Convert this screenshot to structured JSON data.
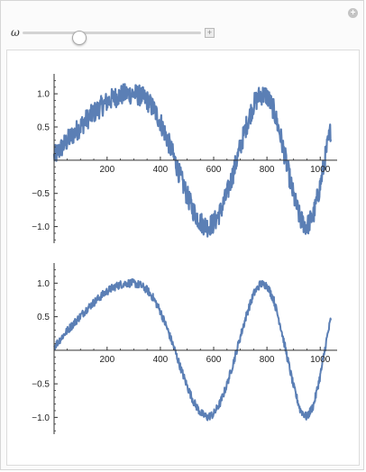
{
  "controls": {
    "parameter_label": "ω",
    "slider_value_fraction": 0.32
  },
  "colors": {
    "line": "#5b7fb5",
    "axis": "#333333"
  },
  "chart_data": [
    {
      "type": "line",
      "title": "",
      "xlabel": "",
      "ylabel": "",
      "xlim": [
        1,
        1050
      ],
      "ylim": [
        -1.25,
        1.3
      ],
      "x_ticks": [
        200,
        400,
        600,
        800,
        1000
      ],
      "y_ticks": [
        -1.0,
        -0.5,
        0.5,
        1.0
      ],
      "x_tick_labels": [
        "200",
        "400",
        "600",
        "800",
        "1000"
      ],
      "y_tick_labels": [
        "−1.0",
        "−0.5",
        "0.5",
        "1.0"
      ],
      "series": [
        {
          "x": [
            1,
            25,
            50,
            75,
            100,
            125,
            150,
            175,
            200,
            225,
            250,
            275,
            300,
            325,
            350,
            375,
            400,
            425,
            450,
            475,
            500,
            525,
            550,
            575,
            600,
            625,
            650,
            675,
            700,
            725,
            750,
            775,
            800,
            825,
            850,
            875,
            900,
            925,
            950,
            975,
            1000,
            1025,
            1040
          ],
          "y": [
            0.05,
            0.17,
            0.29,
            0.4,
            0.51,
            0.62,
            0.71,
            0.8,
            0.88,
            0.94,
            0.98,
            1.0,
            1.0,
            0.97,
            0.9,
            0.77,
            0.58,
            0.33,
            0.05,
            -0.25,
            -0.53,
            -0.77,
            -0.93,
            -1.0,
            -0.95,
            -0.78,
            -0.51,
            -0.17,
            0.2,
            0.55,
            0.84,
            0.99,
            0.97,
            0.76,
            0.38,
            -0.08,
            -0.54,
            -0.89,
            -1.0,
            -0.82,
            -0.38,
            0.18,
            0.47
          ],
          "noise_amplitude": 0.16
        }
      ]
    },
    {
      "type": "line",
      "title": "",
      "xlabel": "",
      "ylabel": "",
      "xlim": [
        1,
        1050
      ],
      "ylim": [
        -1.25,
        1.3
      ],
      "x_ticks": [
        200,
        400,
        600,
        800,
        1000
      ],
      "y_ticks": [
        -1.0,
        -0.5,
        0.5,
        1.0
      ],
      "x_tick_labels": [
        "200",
        "400",
        "600",
        "800",
        "1000"
      ],
      "y_tick_labels": [
        "−1.0",
        "−0.5",
        "0.5",
        "1.0"
      ],
      "series": [
        {
          "x": [
            1,
            25,
            50,
            75,
            100,
            125,
            150,
            175,
            200,
            225,
            250,
            275,
            300,
            325,
            350,
            375,
            400,
            425,
            450,
            475,
            500,
            525,
            550,
            575,
            600,
            625,
            650,
            675,
            700,
            725,
            750,
            775,
            800,
            825,
            850,
            875,
            900,
            925,
            950,
            975,
            1000,
            1025,
            1040
          ],
          "y": [
            0.05,
            0.17,
            0.29,
            0.4,
            0.51,
            0.62,
            0.71,
            0.8,
            0.88,
            0.94,
            0.98,
            1.0,
            1.0,
            0.97,
            0.9,
            0.77,
            0.58,
            0.33,
            0.05,
            -0.25,
            -0.53,
            -0.77,
            -0.93,
            -1.0,
            -0.95,
            -0.78,
            -0.51,
            -0.17,
            0.2,
            0.55,
            0.84,
            0.99,
            0.97,
            0.76,
            0.38,
            -0.08,
            -0.54,
            -0.89,
            -1.0,
            -0.82,
            -0.38,
            0.18,
            0.47
          ],
          "noise_amplitude": 0.06
        }
      ]
    }
  ]
}
